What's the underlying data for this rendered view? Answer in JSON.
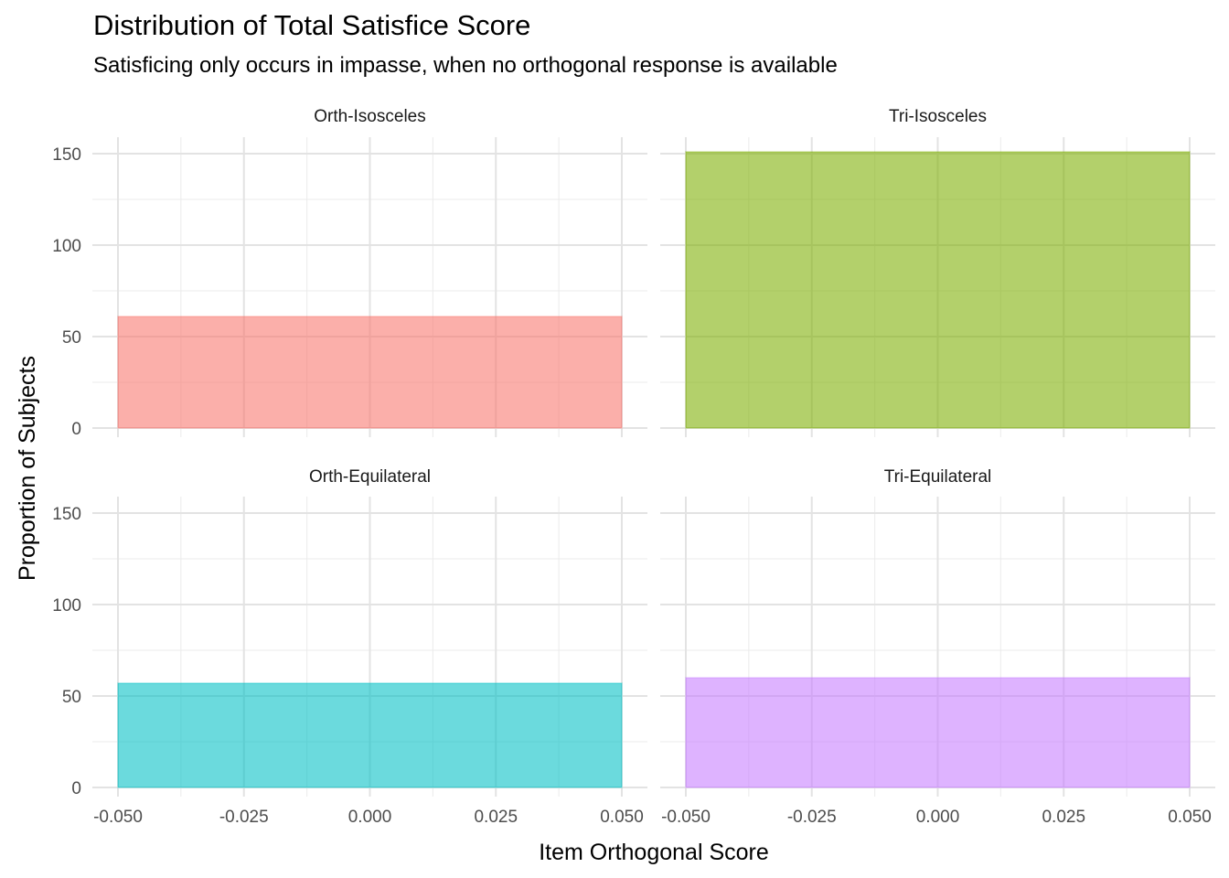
{
  "chart_data": {
    "type": "bar",
    "title": "Distribution of Total Satisfice Score",
    "subtitle": "Satisficing only occurs in impasse, when no orthogonal response is available",
    "xlabel": "Item Orthogonal Score",
    "ylabel": "Proportion of Subjects",
    "xlim": [
      -0.05,
      0.05
    ],
    "ylim": [
      0,
      160
    ],
    "x_ticks": [
      "-0.050",
      "-0.025",
      "0.000",
      "0.025",
      "0.050"
    ],
    "y_ticks": [
      "0",
      "50",
      "100",
      "150"
    ],
    "grid": true,
    "facets": [
      {
        "name": "Orth-Isosceles",
        "x": 0.0,
        "value": 61,
        "color": "#F8766D"
      },
      {
        "name": "Tri-Isosceles",
        "x": 0.0,
        "value": 151,
        "color": "#7CAE00"
      },
      {
        "name": "Orth-Equilateral",
        "x": 0.0,
        "value": 57,
        "color": "#00BFC4"
      },
      {
        "name": "Tri-Equilateral",
        "x": 0.0,
        "value": 60,
        "color": "#C77CFF"
      }
    ]
  }
}
